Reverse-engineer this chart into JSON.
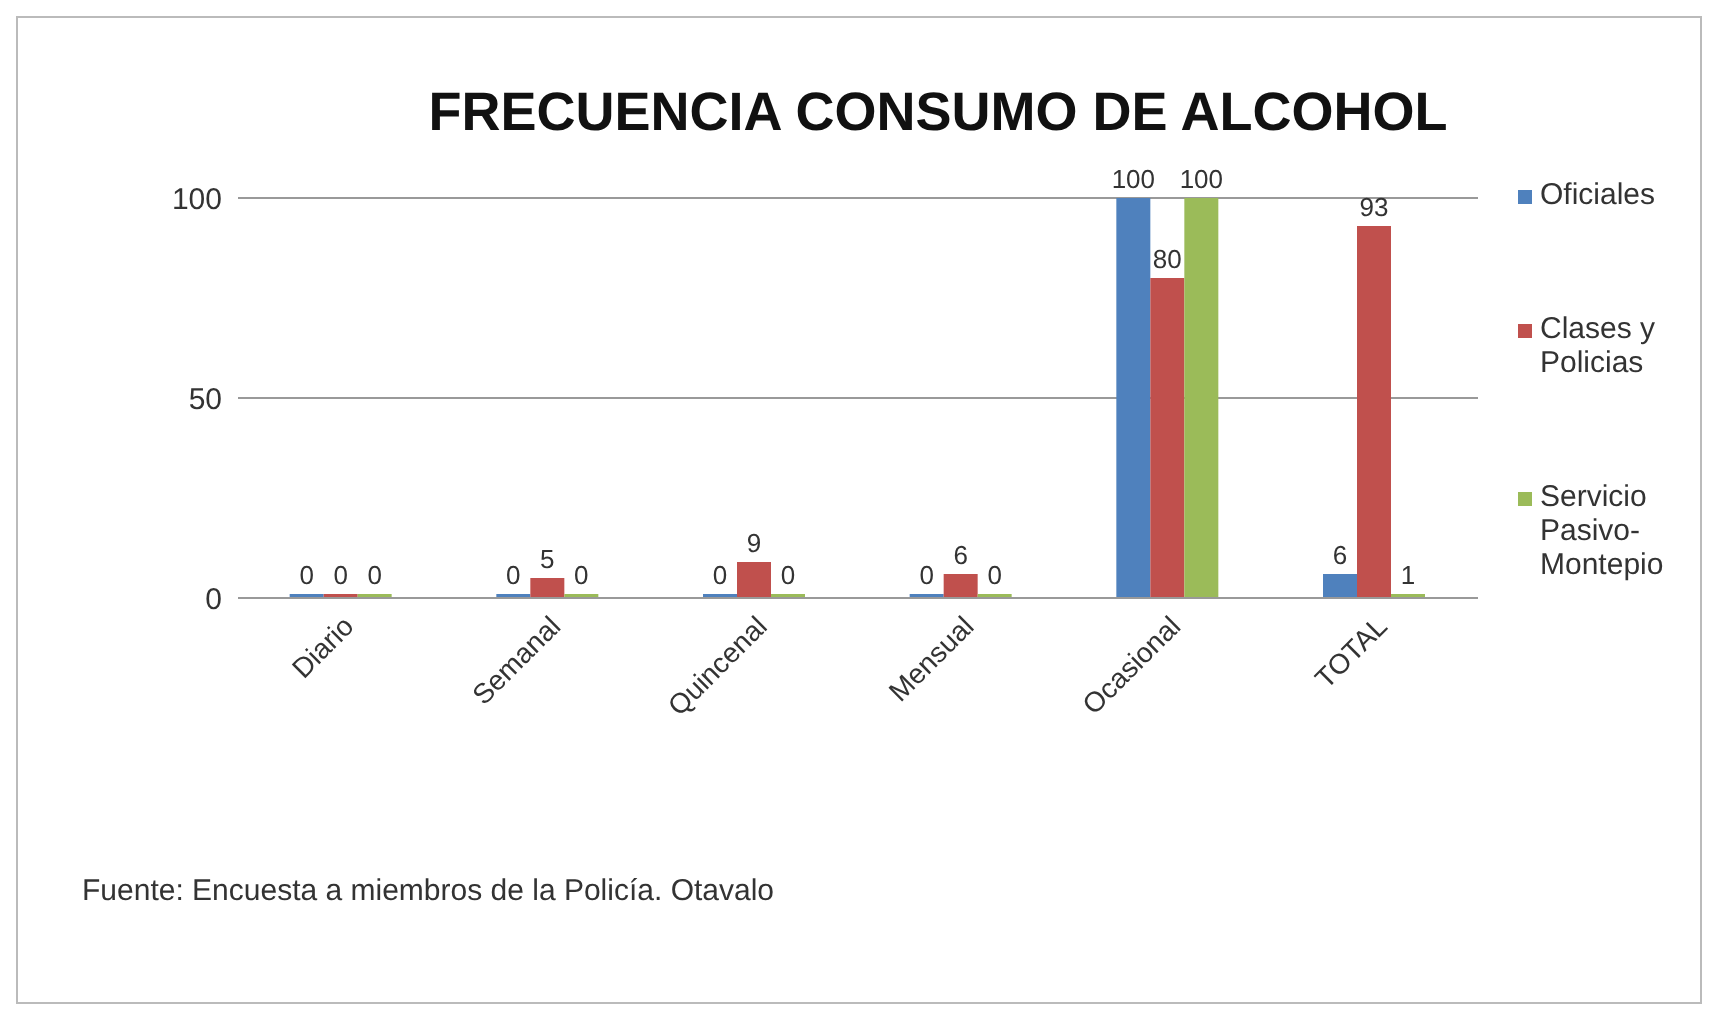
{
  "chart_data": {
    "type": "bar",
    "title": "FRECUENCIA CONSUMO DE ALCOHOL",
    "categories": [
      "Diario",
      "Semanal",
      "Quincenal",
      "Mensual",
      "Ocasional",
      "TOTAL"
    ],
    "series": [
      {
        "name": "Oficiales",
        "color": "#4f81bd",
        "values": [
          0,
          0,
          0,
          0,
          100,
          6
        ]
      },
      {
        "name": "Clases y Policias",
        "color": "#c0504d",
        "values": [
          0,
          5,
          9,
          6,
          80,
          93
        ]
      },
      {
        "name": "Servicio Pasivo-Montepio",
        "color": "#9bbb59",
        "values": [
          0,
          0,
          0,
          0,
          100,
          1
        ]
      }
    ],
    "ylim": [
      0,
      100
    ],
    "yticks": [
      0,
      50,
      100
    ],
    "grid": "y",
    "legend": "right",
    "data_labels": true,
    "annotations": [
      "Fuente: Encuesta a miembros de la Policía. Otavalo"
    ]
  }
}
